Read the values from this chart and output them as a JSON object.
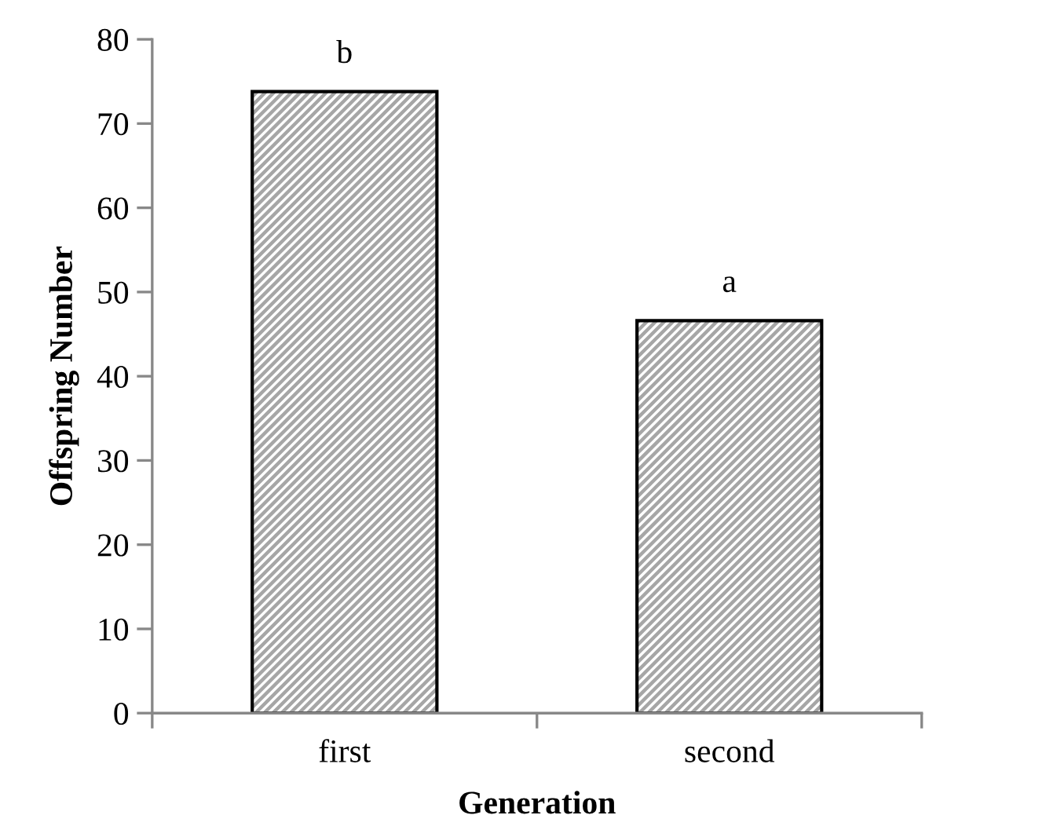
{
  "chart_data": {
    "type": "bar",
    "xlabel": "Generation",
    "ylabel": "Offspring Number",
    "categories": [
      "first",
      "second"
    ],
    "series": [
      {
        "values": [
          73.8,
          46.6
        ]
      }
    ],
    "ylim": [
      0,
      80
    ],
    "yticks": [
      0,
      10,
      20,
      30,
      40,
      50,
      60,
      70,
      80
    ],
    "grid": false,
    "annotations": [
      {
        "text": "b",
        "x": "first",
        "y": 73.8
      },
      {
        "text": "a",
        "x": "second",
        "y": 46.6
      }
    ]
  }
}
